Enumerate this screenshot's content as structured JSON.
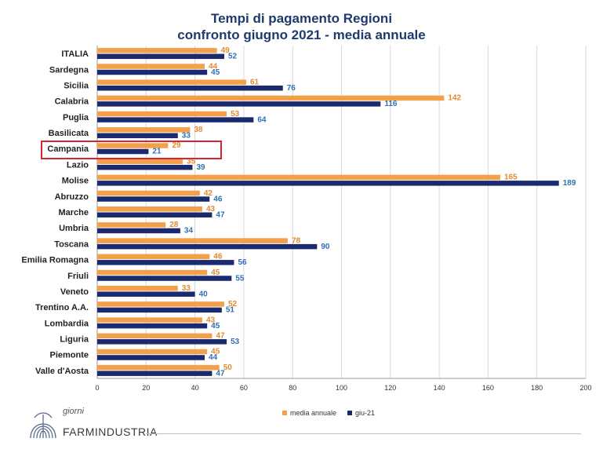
{
  "chart_data": {
    "type": "bar",
    "orientation": "horizontal",
    "title": "Tempi di pagamento Regioni",
    "subtitle": "confronto giugno 2021 - media annuale",
    "categories": [
      "ITALIA",
      "Sardegna",
      "Sicilia",
      "Calabria",
      "Puglia",
      "Basilicata",
      "Campania",
      "Lazio",
      "Molise",
      "Abruzzo",
      "Marche",
      "Umbria",
      "Toscana",
      "Emilia Romagna",
      "Friuli",
      "Veneto",
      "Trentino A.A.",
      "Lombardia",
      "Liguria",
      "Piemonte",
      "Valle d'Aosta"
    ],
    "series": [
      {
        "name": "media annuale",
        "color": "#f4a04a",
        "label_color": "#e58a2e",
        "values": [
          49,
          44,
          61,
          142,
          53,
          38,
          29,
          35,
          165,
          42,
          43,
          28,
          78,
          46,
          45,
          33,
          52,
          43,
          47,
          45,
          50
        ]
      },
      {
        "name": "giu-21",
        "color": "#1a2a6e",
        "label_color": "#2f6fb4",
        "values": [
          52,
          45,
          76,
          116,
          64,
          33,
          21,
          39,
          189,
          46,
          47,
          34,
          90,
          56,
          55,
          40,
          51,
          45,
          53,
          44,
          47
        ]
      }
    ],
    "xlim": [
      0,
      200
    ],
    "xticks": [
      0,
      20,
      40,
      60,
      80,
      100,
      120,
      140,
      160,
      180,
      200
    ],
    "grid": true,
    "legend": "bottom-right",
    "highlight": "Campania"
  },
  "legend": {
    "item1": "media annuale",
    "item2": "giu-21"
  },
  "logo": {
    "top_text": "giorni",
    "brand": "FARMINDUSTRIA"
  }
}
